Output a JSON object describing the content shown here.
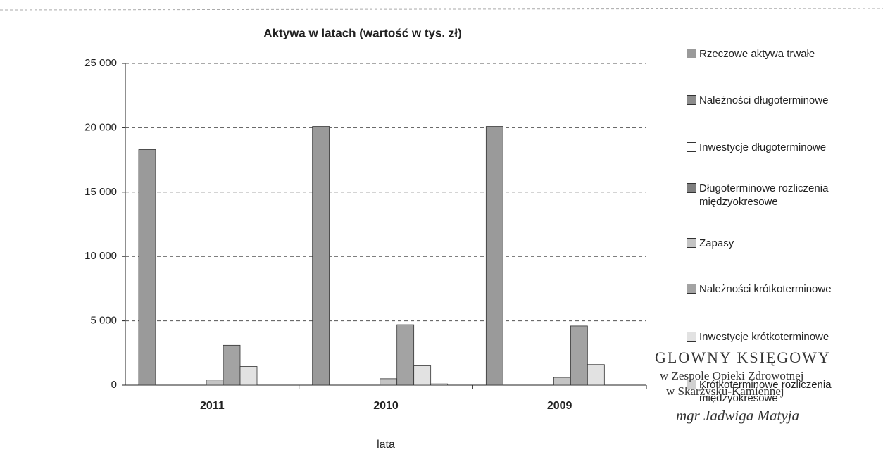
{
  "chart_data": {
    "type": "bar",
    "title": "Aktywa w latach (wartość w tys. zł)",
    "xlabel": "lata",
    "categories": [
      "2011",
      "2010",
      "2009"
    ],
    "series": [
      {
        "name": "Rzeczowe aktywa trwałe",
        "color": "#9a9a9a",
        "values": [
          18300,
          20100,
          20100
        ]
      },
      {
        "name": "Należności długoterminowe",
        "color": "#8c8c8c",
        "values": [
          0,
          0,
          0
        ]
      },
      {
        "name": "Inwestycje długoterminowe",
        "color": "#ffffff",
        "values": [
          0,
          0,
          0
        ]
      },
      {
        "name": "Długoterminowe rozliczenia międzyokresowe",
        "color": "#7f7f7f",
        "values": [
          0,
          0,
          0
        ]
      },
      {
        "name": "Zapasy",
        "color": "#c4c4c4",
        "values": [
          400,
          500,
          600
        ]
      },
      {
        "name": "Należności krótkoterminowe",
        "color": "#a3a3a3",
        "values": [
          3100,
          4700,
          4600
        ]
      },
      {
        "name": "Inwestycje krótkoterminowe",
        "color": "#e2e2e2",
        "values": [
          1450,
          1500,
          1600
        ]
      },
      {
        "name": "Krótkoterminowe rozliczenia międzyokresowe",
        "color": "#d0d0d0",
        "values": [
          0,
          100,
          0
        ]
      }
    ],
    "ylim": [
      0,
      25000
    ],
    "yticks": [
      0,
      {
        "value": 5000,
        "label": "5 000"
      },
      {
        "value": 10000,
        "label": "10 000"
      },
      {
        "value": 15000,
        "label": "15 000"
      },
      {
        "value": 20000,
        "label": "20 000"
      },
      {
        "value": 25000,
        "label": "25 000"
      }
    ],
    "grid": true,
    "legend": "right",
    "annotations": [
      "GLOWNY KSIĘGOWY",
      "w Zespole Opieki Zdrowotnej",
      "w Skarżysku-Kamiennej",
      "mgr Jadwiga Matyja"
    ]
  }
}
